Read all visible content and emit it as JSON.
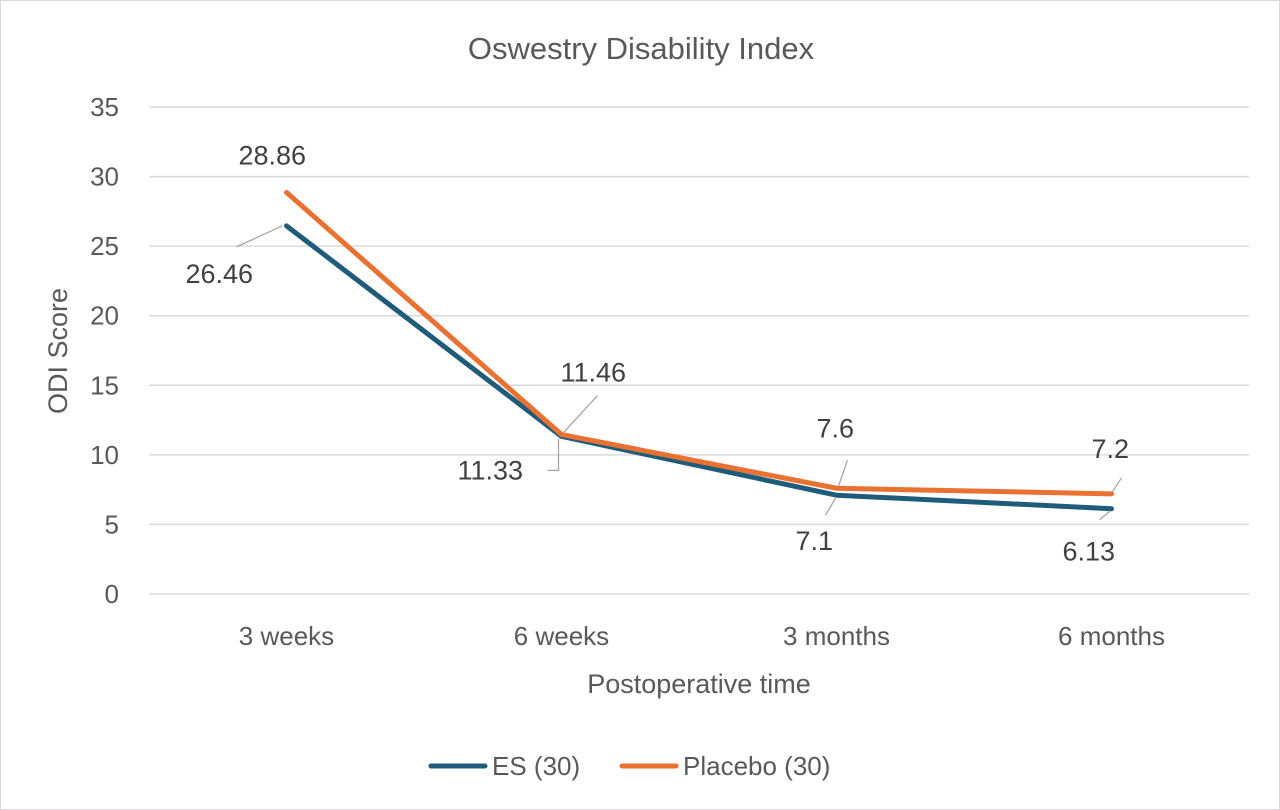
{
  "chart_data": {
    "type": "line",
    "title": "Oswestry Disability Index",
    "xlabel": "Postoperative time",
    "ylabel": "ODI Score",
    "categories": [
      "3 weeks",
      "6 weeks",
      "3 months",
      "6 months"
    ],
    "ylim": [
      0,
      35
    ],
    "yticks": [
      0,
      5,
      10,
      15,
      20,
      25,
      30,
      35
    ],
    "grid": true,
    "legend_position": "bottom",
    "series": [
      {
        "name": "ES (30)",
        "color": "#1f5c7a",
        "values": [
          26.46,
          11.33,
          7.1,
          6.13
        ]
      },
      {
        "name": "Placebo (30)",
        "color": "#e97132",
        "values": [
          28.86,
          11.46,
          7.6,
          7.2
        ]
      }
    ],
    "data_labels": [
      [
        "26.46",
        "11.33",
        "7.1",
        "6.13"
      ],
      [
        "28.86",
        "11.46",
        "7.6",
        "7.2"
      ]
    ]
  }
}
